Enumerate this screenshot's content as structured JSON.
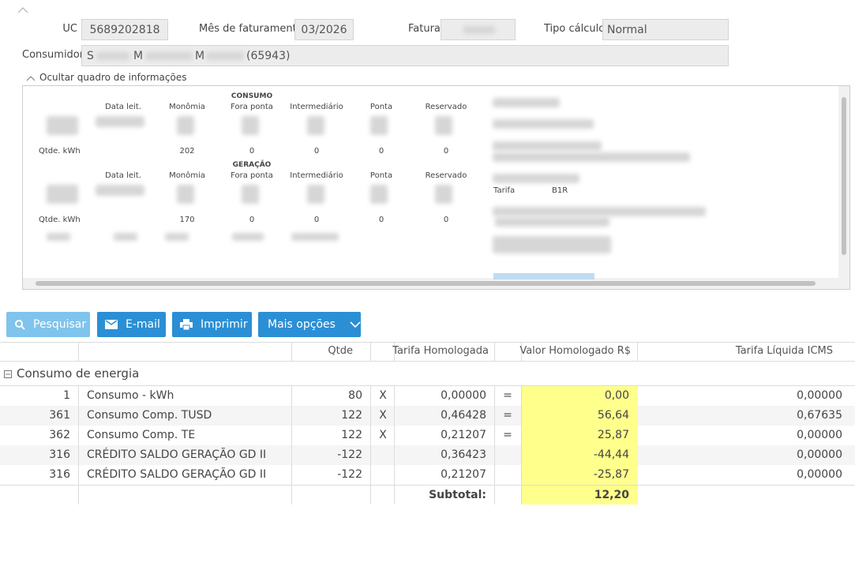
{
  "header": {
    "uc_label": "UC",
    "uc": "5689202818",
    "mes_label": "Mês de faturamento",
    "mes": "03/2026",
    "fatura_label": "Fatura",
    "tipo_label": "Tipo cálculo",
    "tipo": "Normal",
    "consumidor_label": "Consumidor",
    "consumidor_parts": [
      "S",
      "M",
      "M",
      "(65943)"
    ]
  },
  "info": {
    "toggle": "Ocultar quadro de informações",
    "columns": [
      "Data leit.",
      "Monômia",
      "Fora ponta",
      "Intermediário",
      "Ponta",
      "Reservado"
    ],
    "sections": [
      {
        "title": "CONSUMO",
        "row_label": "Qtde. kWh",
        "values": [
          "202",
          "0",
          "0",
          "0",
          "0"
        ]
      },
      {
        "title": "GERAÇÃO",
        "row_label": "Qtde. kWh",
        "values": [
          "170",
          "0",
          "0",
          "0",
          "0"
        ]
      }
    ],
    "tarifa_label": "Tarifa",
    "tarifa": "B1R"
  },
  "buttons": [
    "Pesquisar",
    "E-mail",
    "Imprimir",
    "Mais opções"
  ],
  "table": {
    "columns": {
      "qtde": "Qtde",
      "tarifa": "Tarifa Homologada",
      "valor": "Valor Homologado R$",
      "icms": "Tarifa Líquida ICMS"
    },
    "group": "Consumo de energia",
    "rows": [
      {
        "code": "1",
        "description": "Consumo - kWh",
        "qtde": "80",
        "op1": "X",
        "tarifa": "0,00000",
        "op2": "=",
        "valor": "0,00",
        "icms": "0,00000"
      },
      {
        "code": "361",
        "description": "Consumo Comp. TUSD",
        "qtde": "122",
        "op1": "X",
        "tarifa": "0,46428",
        "op2": "=",
        "valor": "56,64",
        "icms": "0,67635"
      },
      {
        "code": "362",
        "description": "Consumo Comp. TE",
        "qtde": "122",
        "op1": "X",
        "tarifa": "0,21207",
        "op2": "=",
        "valor": "25,87",
        "icms": "0,00000"
      },
      {
        "code": "316",
        "description": "CRÉDITO SALDO GERAÇÃO GD II",
        "qtde": "-122",
        "tarifa": "0,36423",
        "valor": "-44,44",
        "icms": "0,00000"
      },
      {
        "code": "316",
        "description": "CRÉDITO SALDO GERAÇÃO GD II",
        "qtde": "-122",
        "tarifa": "0,21207",
        "valor": "-25,87",
        "icms": "0,00000"
      }
    ],
    "subtotal_label": "Subtotal:",
    "subtotal": "12,20"
  }
}
